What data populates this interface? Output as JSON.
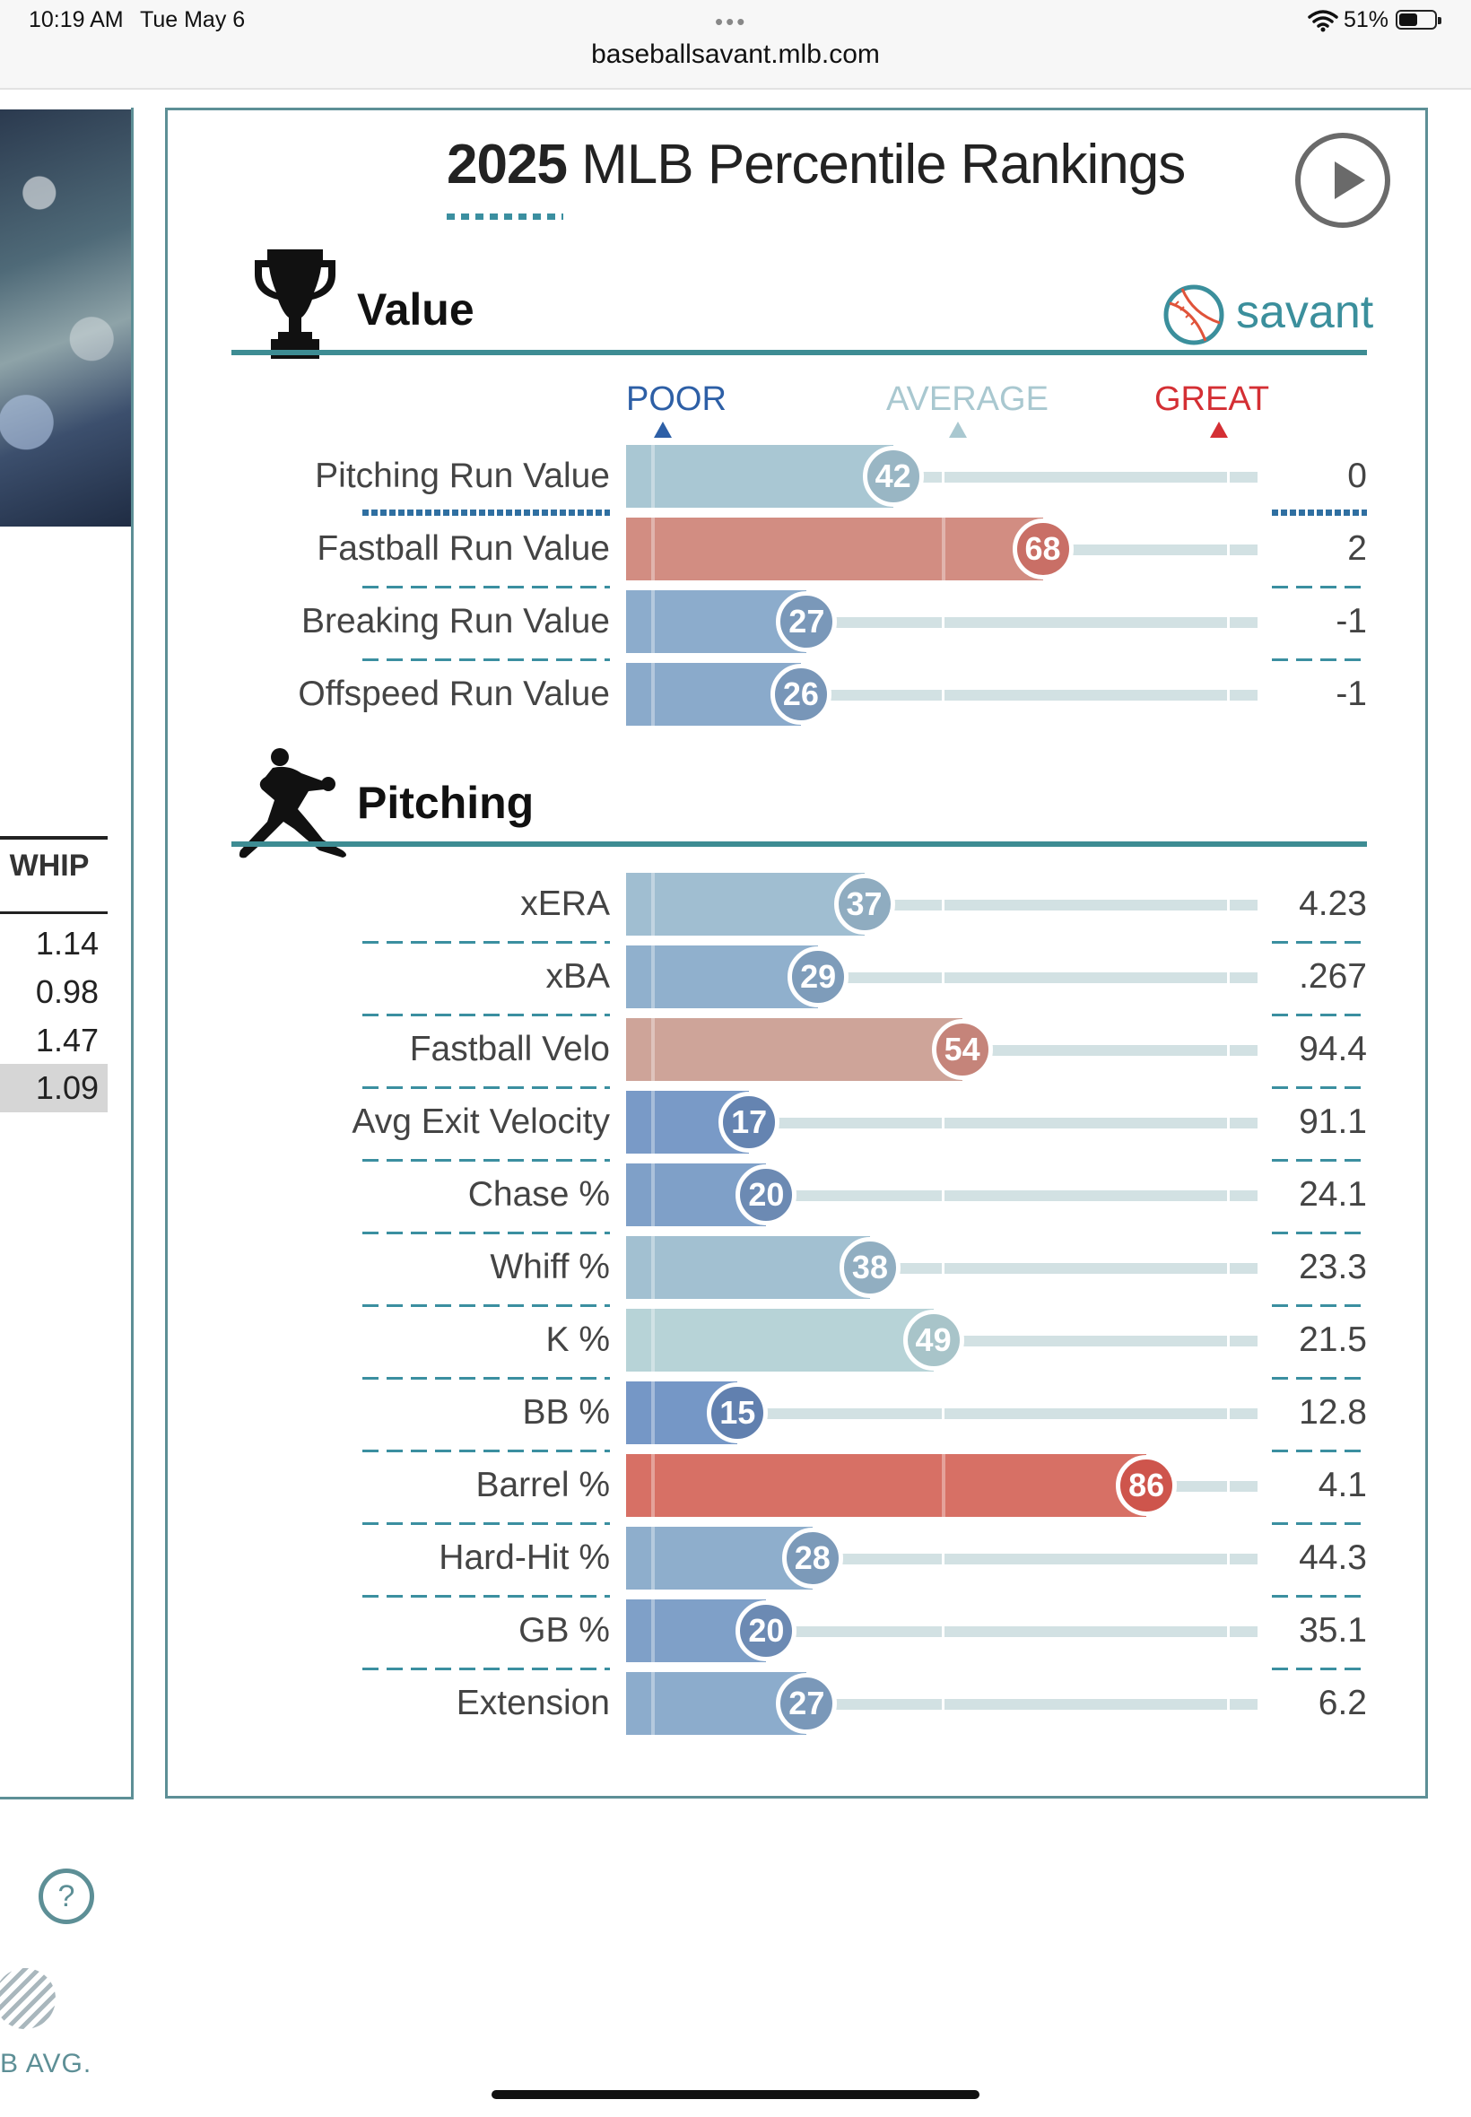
{
  "status_bar": {
    "time": "10:19 AM",
    "date": "Tue May 6",
    "battery": "51%",
    "url": "baseballsavant.mlb.com"
  },
  "left_panel": {
    "column_header": "WHIP",
    "values": [
      "1.14",
      "0.98",
      "1.47",
      "1.09"
    ],
    "help_symbol": "?",
    "legend_label": "B AVG."
  },
  "card": {
    "title_year": "2025",
    "title_rest": " MLB Percentile Rankings",
    "brand": "savant",
    "scale": {
      "poor": "POOR",
      "average": "AVERAGE",
      "great": "GREAT"
    },
    "sections": [
      {
        "title": "Value",
        "icon": "trophy-icon",
        "rows": [
          {
            "label": "Pitching Run Value",
            "percentile": 42,
            "value": "0"
          },
          {
            "label": "Fastball Run Value",
            "percentile": 68,
            "value": "2"
          },
          {
            "label": "Breaking Run Value",
            "percentile": 27,
            "value": "-1"
          },
          {
            "label": "Offspeed Run Value",
            "percentile": 26,
            "value": "-1"
          }
        ]
      },
      {
        "title": "Pitching",
        "icon": "pitcher-icon",
        "rows": [
          {
            "label": "xERA",
            "percentile": 37,
            "value": "4.23"
          },
          {
            "label": "xBA",
            "percentile": 29,
            "value": ".267"
          },
          {
            "label": "Fastball Velo",
            "percentile": 54,
            "value": "94.4"
          },
          {
            "label": "Avg Exit Velocity",
            "percentile": 17,
            "value": "91.1"
          },
          {
            "label": "Chase %",
            "percentile": 20,
            "value": "24.1"
          },
          {
            "label": "Whiff %",
            "percentile": 38,
            "value": "23.3"
          },
          {
            "label": "K %",
            "percentile": 49,
            "value": "21.5"
          },
          {
            "label": "BB %",
            "percentile": 15,
            "value": "12.8"
          },
          {
            "label": "Barrel %",
            "percentile": 86,
            "value": "4.1"
          },
          {
            "label": "Hard-Hit %",
            "percentile": 28,
            "value": "44.3"
          },
          {
            "label": "GB %",
            "percentile": 20,
            "value": "35.1"
          },
          {
            "label": "Extension",
            "percentile": 27,
            "value": "6.2"
          }
        ]
      }
    ]
  }
}
